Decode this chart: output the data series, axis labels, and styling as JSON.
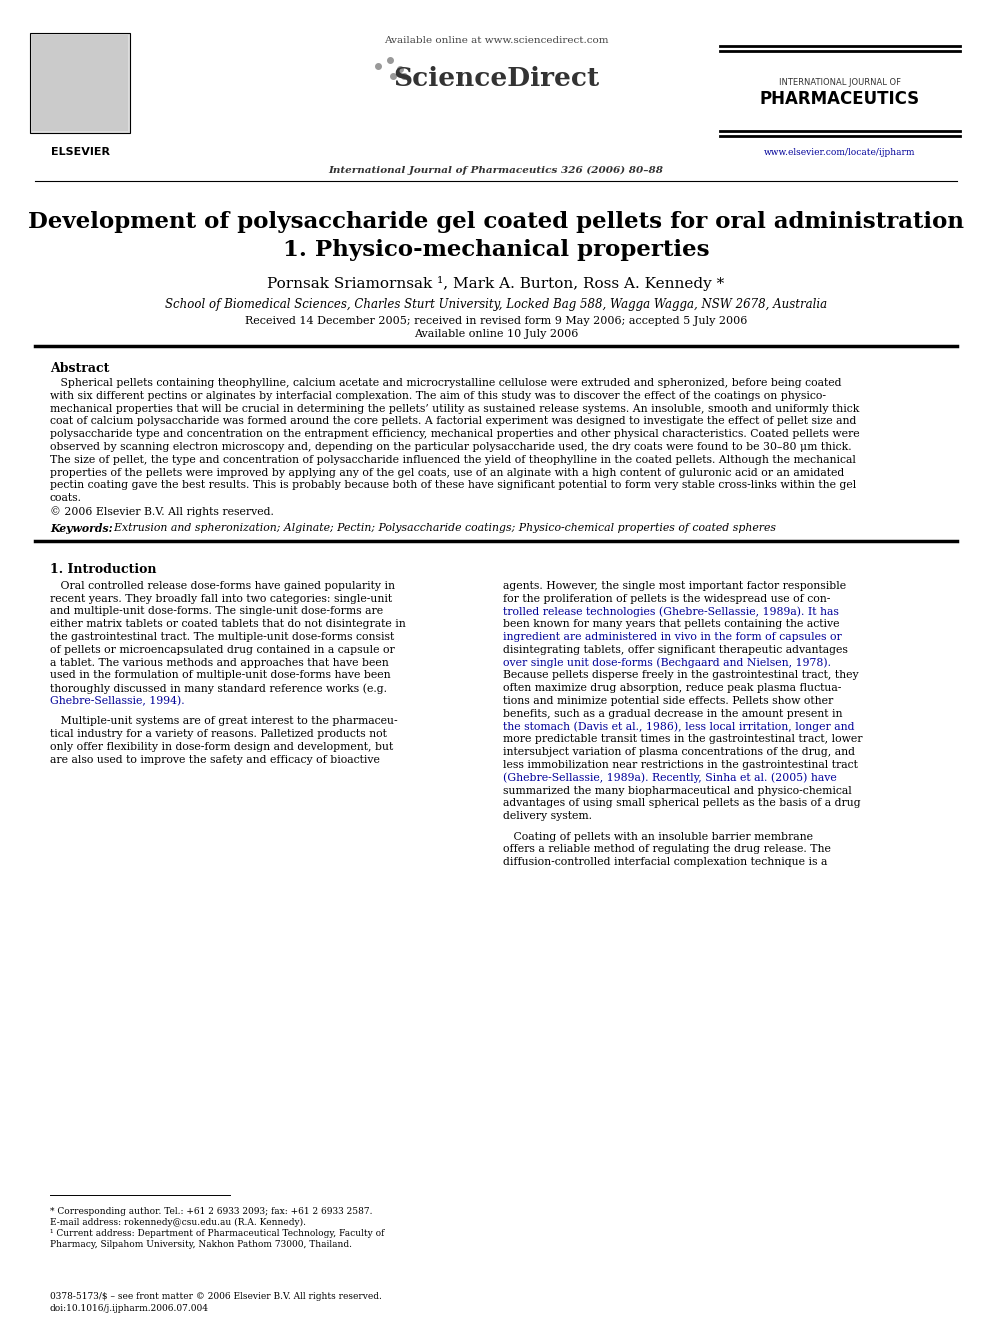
{
  "bg_color": "#ffffff",
  "available_online": "Available online at www.sciencedirect.com",
  "journal_line": "International Journal of Pharmaceutics 326 (2006) 80–88",
  "elsevier_text": "ELSEVIER",
  "intl_journal_of": "INTERNATIONAL JOURNAL OF",
  "pharmaceutics": "PHARMACEUTICS",
  "website": "www.elsevier.com/locate/ijpharm",
  "title_line1": "Development of polysaccharide gel coated pellets for oral administration",
  "title_line2": "1. Physico-mechanical properties",
  "authors": "Pornsak Sriamornsak ¹, Mark A. Burton, Ross A. Kennedy *",
  "affiliation": "School of Biomedical Sciences, Charles Sturt University, Locked Bag 588, Wagga Wagga, NSW 2678, Australia",
  "received": "Received 14 December 2005; received in revised form 9 May 2006; accepted 5 July 2006",
  "available_online_date": "Available online 10 July 2006",
  "abstract_heading": "Abstract",
  "abstract_lines": [
    "   Spherical pellets containing theophylline, calcium acetate and microcrystalline cellulose were extruded and spheronized, before being coated",
    "with six different pectins or alginates by interfacial complexation. The aim of this study was to discover the effect of the coatings on physico-",
    "mechanical properties that will be crucial in determining the pellets’ utility as sustained release systems. An insoluble, smooth and uniformly thick",
    "coat of calcium polysaccharide was formed around the core pellets. A factorial experiment was designed to investigate the effect of pellet size and",
    "polysaccharide type and concentration on the entrapment efficiency, mechanical properties and other physical characteristics. Coated pellets were",
    "observed by scanning electron microscopy and, depending on the particular polysaccharide used, the dry coats were found to be 30–80 μm thick.",
    "The size of pellet, the type and concentration of polysaccharide influenced the yield of theophylline in the coated pellets. Although the mechanical",
    "properties of the pellets were improved by applying any of the gel coats, use of an alginate with a high content of guluronic acid or an amidated",
    "pectin coating gave the best results. This is probably because both of these have significant potential to form very stable cross-links within the gel",
    "coats.",
    "© 2006 Elsevier B.V. All rights reserved."
  ],
  "keywords_label": "Keywords:",
  "keywords_text": "  Extrusion and spheronization; Alginate; Pectin; Polysaccharide coatings; Physico-chemical properties of coated spheres",
  "section1_heading": "1. Introduction",
  "col1_lines": [
    "   Oral controlled release dose-forms have gained popularity in",
    "recent years. They broadly fall into two categories: single-unit",
    "and multiple-unit dose-forms. The single-unit dose-forms are",
    "either matrix tablets or coated tablets that do not disintegrate in",
    "the gastrointestinal tract. The multiple-unit dose-forms consist",
    "of pellets or microencapsulated drug contained in a capsule or",
    "a tablet. The various methods and approaches that have been",
    "used in the formulation of multiple-unit dose-forms have been",
    "thoroughly discussed in many standard reference works (e.g.",
    "Ghebre-Sellassie, 1994).",
    "",
    "   Multiple-unit systems are of great interest to the pharmaceu-",
    "tical industry for a variety of reasons. Palletized products not",
    "only offer flexibility in dose-form design and development, but",
    "are also used to improve the safety and efficacy of bioactive"
  ],
  "col2_lines": [
    "agents. However, the single most important factor responsible",
    "for the proliferation of pellets is the widespread use of con-",
    "trolled release technologies (Ghebre-Sellassie, 1989a). It has",
    "been known for many years that pellets containing the active",
    "ingredient are administered in vivo in the form of capsules or",
    "disintegrating tablets, offer significant therapeutic advantages",
    "over single unit dose-forms (Bechgaard and Nielsen, 1978).",
    "Because pellets disperse freely in the gastrointestinal tract, they",
    "often maximize drug absorption, reduce peak plasma fluctua-",
    "tions and minimize potential side effects. Pellets show other",
    "benefits, such as a gradual decrease in the amount present in",
    "the stomach (Davis et al., 1986), less local irritation, longer and",
    "more predictable transit times in the gastrointestinal tract, lower",
    "intersubject variation of plasma concentrations of the drug, and",
    "less immobilization near restrictions in the gastrointestinal tract",
    "(Ghebre-Sellassie, 1989a). Recently, Sinha et al. (2005) have",
    "summarized the many biopharmaceutical and physico-chemical",
    "advantages of using small spherical pellets as the basis of a drug",
    "delivery system.",
    "",
    "   Coating of pellets with an insoluble barrier membrane",
    "offers a reliable method of regulating the drug release. The",
    "diffusion-controlled interfacial complexation technique is a"
  ],
  "footnote1": "* Corresponding author. Tel.: +61 2 6933 2093; fax: +61 2 6933 2587.",
  "footnote2": "E-mail address: rokennedy@csu.edu.au (R.A. Kennedy).",
  "footnote3": "¹ Current address: Department of Pharmaceutical Technology, Faculty of",
  "footnote4": "Pharmacy, Silpahom University, Nakhon Pathom 73000, Thailand.",
  "footer_line": "0378-5173/$ – see front matter © 2006 Elsevier B.V. All rights reserved.",
  "doi_line": "doi:10.1016/j.ijpharm.2006.07.004",
  "text_color": "#000000",
  "link_color": "#000099",
  "heading_color": "#000000"
}
